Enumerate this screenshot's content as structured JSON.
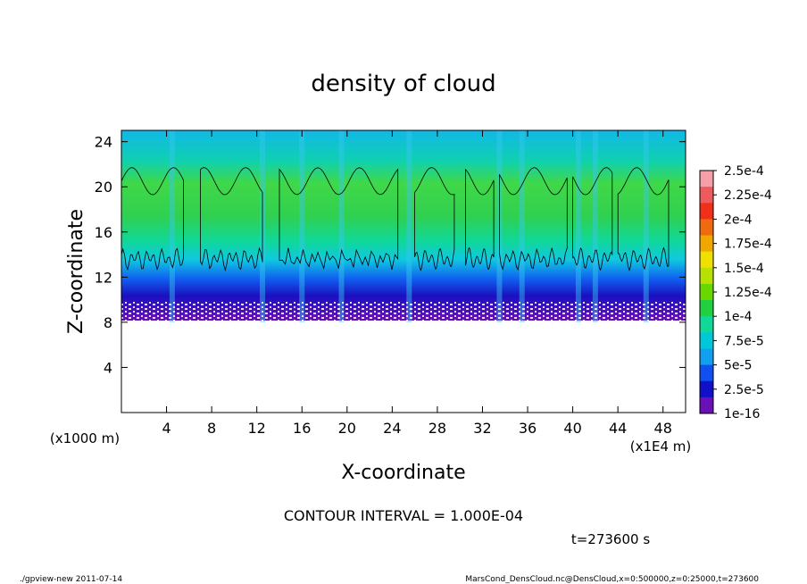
{
  "chart_data": {
    "type": "heatmap",
    "title": "density of cloud",
    "xlabel": "X-coordinate",
    "ylabel": "Z-coordinate",
    "x_unit_label": "(x1E4 m)",
    "y_unit_label": "(x1000 m)",
    "x_ticks": [
      4,
      8,
      12,
      16,
      20,
      24,
      28,
      32,
      36,
      40,
      44,
      48
    ],
    "y_ticks": [
      4,
      8,
      12,
      16,
      20,
      24
    ],
    "xlim": [
      0,
      50
    ],
    "ylim": [
      0,
      25
    ],
    "colorbar": {
      "labels": [
        "2.5e-4",
        "2.25e-4",
        "2e-4",
        "1.75e-4",
        "1.5e-4",
        "1.25e-4",
        "1e-4",
        "7.5e-5",
        "5e-5",
        "2.5e-5",
        "1e-16"
      ],
      "colors": [
        "#f5a0a8",
        "#ef5a5a",
        "#f03018",
        "#f06a10",
        "#f0a800",
        "#f0e000",
        "#b8e000",
        "#68d800",
        "#20d040",
        "#10d898",
        "#00c8d8",
        "#10a0f0",
        "#1050f0",
        "#1010c8",
        "#6a10b8"
      ],
      "values": [
        0.00025,
        0.000225,
        0.0002,
        0.000175,
        0.00015,
        0.000125,
        0.0001,
        7.5e-05,
        5e-05,
        2.5e-05,
        1e-16
      ]
    },
    "contour_interval_text": "CONTOUR INTERVAL = 1.000E-04",
    "time_text": "t=273600 s",
    "field_profile": [
      {
        "z": 8,
        "value": 1e-16
      },
      {
        "z": 10,
        "value": 2e-05
      },
      {
        "z": 12,
        "value": 6e-05
      },
      {
        "z": 14,
        "value": 9e-05
      },
      {
        "z": 17,
        "value": 0.00011
      },
      {
        "z": 20,
        "value": 0.0001
      },
      {
        "z": 22,
        "value": 8e-05
      },
      {
        "z": 25,
        "value": 6e-05
      }
    ]
  },
  "footer": {
    "left": "./gpview-new  2011-07-14",
    "right": "MarsCond_DensCloud.nc@DensCloud,x=0:500000,z=0:25000,t=273600"
  }
}
